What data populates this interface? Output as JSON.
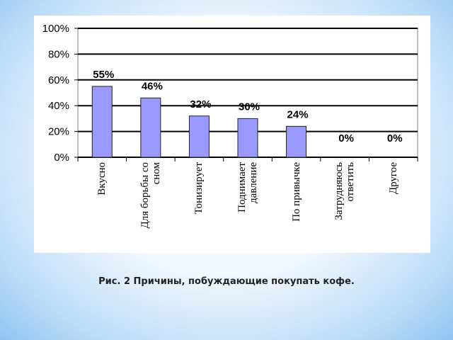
{
  "chart_data": {
    "type": "bar",
    "caption": "Рис. 2 Причины, побуждающие покупать кофе.",
    "categories": [
      "Вкусно",
      "Для борьбы со сном",
      "Тонизирует",
      "Поднимает давление",
      "По привычке",
      "Затрудняюсь ответить",
      "Другое"
    ],
    "values": [
      55,
      46,
      32,
      30,
      24,
      0,
      0
    ],
    "value_labels": [
      "55%",
      "46%",
      "32%",
      "30%",
      "24%",
      "0%",
      "0%"
    ],
    "color": "#9999ff",
    "ylim": [
      0,
      100
    ],
    "yticks": [
      {
        "value": 0,
        "label": "0%"
      },
      {
        "value": 20,
        "label": "20%"
      },
      {
        "value": 40,
        "label": "40%"
      },
      {
        "value": 60,
        "label": "60%"
      },
      {
        "value": 80,
        "label": "80%"
      },
      {
        "value": 100,
        "label": "100%"
      }
    ],
    "grid": true
  }
}
